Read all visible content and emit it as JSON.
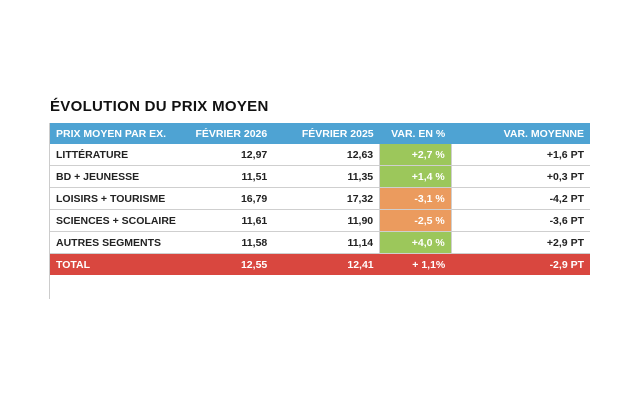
{
  "header": {
    "title": "ÉVOLUTION DU PRIX MOYEN"
  },
  "table": {
    "columns": [
      "PRIX MOYEN PAR EX.",
      "FÉVRIER 2026",
      "FÉVRIER 2025",
      "VAR. EN %",
      "VAR. MOYENNE"
    ],
    "rows": [
      [
        "LITTÉRATURE",
        "12,97",
        "12,63",
        "+2,7 %",
        "+1,6 PT"
      ],
      [
        "BD + JEUNESSE",
        "11,51",
        "11,35",
        "+1,4 %",
        "+0,3 PT"
      ],
      [
        "LOISIRS + TOURISME",
        "16,79",
        "17,32",
        "-3,1 %",
        "-4,2 PT"
      ],
      [
        "SCIENCES + SCOLAIRE",
        "11,61",
        "11,90",
        "-2,5 %",
        "-3,6 PT"
      ],
      [
        "AUTRES SEGMENTS",
        "11,58",
        "11,14",
        "+4,0 %",
        "+2,9 PT"
      ]
    ],
    "total": [
      "TOTAL",
      "12,55",
      "12,41",
      "+ 1,1%",
      "-2,9 PT"
    ]
  }
}
